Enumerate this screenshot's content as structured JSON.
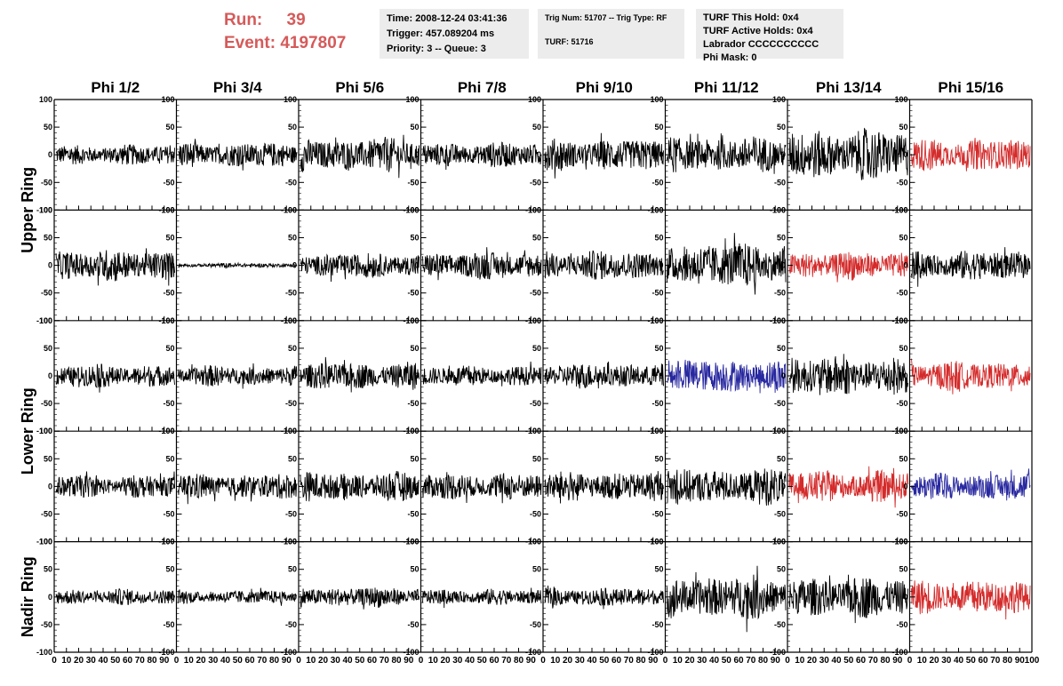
{
  "header": {
    "run_label": "Run:",
    "run_value": "39",
    "event_label": "Event:",
    "event_value": "4197807",
    "time": "Time: 2008-12-24 03:41:36",
    "trigger": "Trigger: 457.089204 ms",
    "priority": "Priority: 3 -- Queue: 3",
    "trig_num": "Trig Num: 51707 -- Trig Type: RF",
    "turf": "TURF: 51716",
    "turf_this_hold": "TURF This Hold: 0x4",
    "turf_active_holds": "TURF Active Holds: 0x4",
    "labrador": "Labrador CCCCCCCCCC",
    "phi_mask": "Phi Mask: 0",
    "text_color": "#d65a5a"
  },
  "chart_data": {
    "type": "line",
    "columns": [
      "Phi 1/2",
      "Phi 3/4",
      "Phi 5/6",
      "Phi 7/8",
      "Phi 9/10",
      "Phi 11/12",
      "Phi 13/14",
      "Phi 15/16"
    ],
    "ring_labels": [
      {
        "label": "Upper Ring",
        "rows": [
          0,
          1
        ]
      },
      {
        "label": "Lower Ring",
        "rows": [
          2,
          3
        ]
      },
      {
        "label": "Nadir Ring",
        "rows": [
          4
        ]
      }
    ],
    "xlim": [
      0,
      100
    ],
    "ylim": [
      -100,
      100
    ],
    "x_ticks": [
      0,
      10,
      20,
      30,
      40,
      50,
      60,
      70,
      80,
      90,
      100
    ],
    "y_ticks": [
      100,
      50,
      0,
      -50,
      -100
    ],
    "colors": {
      "black": "#000000",
      "red": "#d42b2b",
      "blue": "#2828a0"
    },
    "note_amplitudes": "approximate peak amplitudes per panel",
    "panels": [
      [
        {
          "amp": 18,
          "color": "black"
        },
        {
          "amp": 22,
          "color": "black"
        },
        {
          "amp": 30,
          "color": "black"
        },
        {
          "amp": 22,
          "color": "black"
        },
        {
          "amp": 28,
          "color": "black"
        },
        {
          "amp": 32,
          "color": "black"
        },
        {
          "amp": 45,
          "color": "black"
        },
        {
          "amp": 28,
          "color": "red"
        }
      ],
      [
        {
          "amp": 28,
          "color": "black"
        },
        {
          "amp": 4,
          "color": "black"
        },
        {
          "amp": 22,
          "color": "black"
        },
        {
          "amp": 24,
          "color": "black"
        },
        {
          "amp": 26,
          "color": "black"
        },
        {
          "amp": 40,
          "color": "black"
        },
        {
          "amp": 25,
          "color": "red"
        },
        {
          "amp": 26,
          "color": "black"
        }
      ],
      [
        {
          "amp": 20,
          "color": "black"
        },
        {
          "amp": 18,
          "color": "black"
        },
        {
          "amp": 24,
          "color": "black"
        },
        {
          "amp": 18,
          "color": "black"
        },
        {
          "amp": 22,
          "color": "black"
        },
        {
          "amp": 30,
          "color": "blue"
        },
        {
          "amp": 35,
          "color": "black"
        },
        {
          "amp": 26,
          "color": "red"
        }
      ],
      [
        {
          "amp": 20,
          "color": "black"
        },
        {
          "amp": 22,
          "color": "black"
        },
        {
          "amp": 26,
          "color": "black"
        },
        {
          "amp": 24,
          "color": "black"
        },
        {
          "amp": 26,
          "color": "black"
        },
        {
          "amp": 32,
          "color": "black"
        },
        {
          "amp": 28,
          "color": "red"
        },
        {
          "amp": 24,
          "color": "blue"
        }
      ],
      [
        {
          "amp": 14,
          "color": "black"
        },
        {
          "amp": 12,
          "color": "black"
        },
        {
          "amp": 18,
          "color": "black"
        },
        {
          "amp": 14,
          "color": "black"
        },
        {
          "amp": 16,
          "color": "black"
        },
        {
          "amp": 38,
          "color": "black"
        },
        {
          "amp": 36,
          "color": "black"
        },
        {
          "amp": 30,
          "color": "red"
        }
      ]
    ]
  }
}
